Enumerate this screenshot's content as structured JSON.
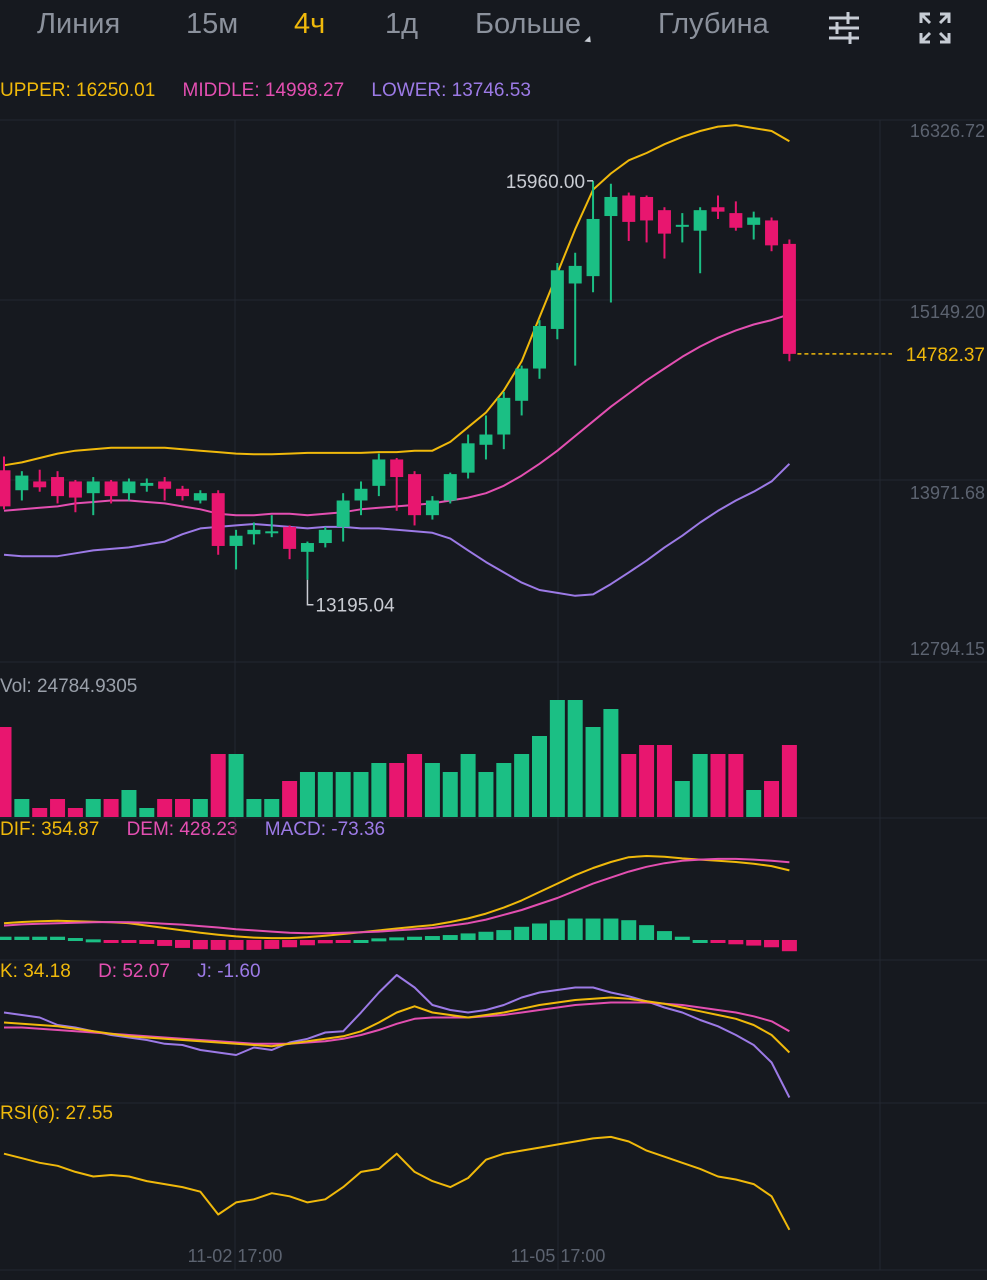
{
  "tabs": [
    {
      "label": "Линия",
      "active": false
    },
    {
      "label": "15м",
      "active": false
    },
    {
      "label": "4ч",
      "active": true
    },
    {
      "label": "1д",
      "active": false
    },
    {
      "label": "Больше",
      "active": false
    },
    {
      "label": "Глубина",
      "active": false
    }
  ],
  "icons": {
    "settings": "sliders-icon",
    "fullscreen": "expand-icon"
  },
  "colors": {
    "up": "#1bbf84",
    "down": "#e8166f",
    "upper": "#f0b90b",
    "middle": "#e34fb1",
    "lower": "#9c7ae6"
  },
  "bollinger": {
    "upper_label": "UPPER: 16250.01",
    "middle_label": "MIDDLE: 14998.27",
    "lower_label": "LOWER: 13746.53"
  },
  "volume_label": "Vol: 24784.9305",
  "macd": {
    "dif_label": "DIF: 354.87",
    "dem_label": "DEM: 428.23",
    "macd_label": "MACD: -73.36"
  },
  "kdj": {
    "k_label": "K: 34.18",
    "d_label": "D: 52.07",
    "j_label": "J: -1.60"
  },
  "rsi_label": "RSI(6): 27.55",
  "chart_data": {
    "type": "candlestick",
    "price_axis": {
      "ticks": [
        "16326.72",
        "15149.20",
        "13971.68",
        "12794.15"
      ],
      "range": [
        12794.15,
        16326.72
      ]
    },
    "current_price": "14782.37",
    "max_annotation": "15960.00",
    "min_annotation": "13195.04",
    "time_labels": [
      "11-02 17:00",
      "11-05 17:00"
    ],
    "candles": [
      [
        14006,
        13760,
        14100,
        13740
      ],
      [
        13870,
        13970,
        14000,
        13800
      ],
      [
        13930,
        13890,
        14010,
        13860
      ],
      [
        13960,
        13830,
        14000,
        13780
      ],
      [
        13930,
        13820,
        13940,
        13720
      ],
      [
        13850,
        13930,
        13960,
        13700
      ],
      [
        13930,
        13830,
        13940,
        13780
      ],
      [
        13850,
        13930,
        13950,
        13800
      ],
      [
        13900,
        13920,
        13950,
        13860
      ],
      [
        13930,
        13880,
        13960,
        13800
      ],
      [
        13880,
        13830,
        13900,
        13800
      ],
      [
        13800,
        13850,
        13870,
        13780
      ],
      [
        13850,
        13490,
        13870,
        13430
      ],
      [
        13490,
        13560,
        13600,
        13330
      ],
      [
        13570,
        13600,
        13650,
        13500
      ],
      [
        13590,
        13590,
        13700,
        13550
      ],
      [
        13620,
        13470,
        13630,
        13400
      ],
      [
        13450,
        13510,
        13520,
        13260
      ],
      [
        13510,
        13600,
        13620,
        13480
      ],
      [
        13620,
        13800,
        13850,
        13520
      ],
      [
        13800,
        13880,
        13930,
        13700
      ],
      [
        13900,
        14080,
        14120,
        13830
      ],
      [
        14080,
        13960,
        14090,
        13730
      ],
      [
        13980,
        13700,
        14000,
        13630
      ],
      [
        13700,
        13800,
        13830,
        13670
      ],
      [
        13800,
        13980,
        13990,
        13780
      ],
      [
        13990,
        14190,
        14250,
        13950
      ],
      [
        14180,
        14250,
        14380,
        14080
      ],
      [
        14250,
        14500,
        14540,
        14150
      ],
      [
        14480,
        14700,
        14720,
        14380
      ],
      [
        14700,
        14990,
        15030,
        14630
      ],
      [
        14970,
        15370,
        15420,
        14900
      ],
      [
        15280,
        15400,
        15490,
        14720
      ],
      [
        15330,
        15720,
        15980,
        15220
      ],
      [
        15740,
        15870,
        15960,
        15150
      ],
      [
        15880,
        15700,
        15900,
        15570
      ],
      [
        15870,
        15710,
        15880,
        15560
      ],
      [
        15780,
        15620,
        15800,
        15450
      ],
      [
        15680,
        15680,
        15760,
        15560
      ],
      [
        15640,
        15780,
        15800,
        15350
      ],
      [
        15800,
        15770,
        15880,
        15720
      ],
      [
        15760,
        15660,
        15840,
        15640
      ],
      [
        15680,
        15730,
        15770,
        15580
      ],
      [
        15710,
        15540,
        15730,
        15500
      ],
      [
        15550,
        14800,
        15580,
        14750
      ]
    ],
    "bollinger_upper": [
      14040,
      14060,
      14090,
      14120,
      14140,
      14150,
      14160,
      14160,
      14160,
      14160,
      14150,
      14140,
      14130,
      14120,
      14115,
      14115,
      14120,
      14125,
      14125,
      14125,
      14125,
      14130,
      14130,
      14140,
      14140,
      14200,
      14300,
      14400,
      14550,
      14750,
      15050,
      15350,
      15650,
      15920,
      16030,
      16120,
      16170,
      16230,
      16280,
      16320,
      16350,
      16360,
      16340,
      16320,
      16250
    ],
    "bollinger_middle": [
      13730,
      13740,
      13750,
      13760,
      13780,
      13790,
      13800,
      13800,
      13790,
      13780,
      13760,
      13740,
      13710,
      13700,
      13700,
      13710,
      13710,
      13700,
      13710,
      13720,
      13740,
      13750,
      13760,
      13770,
      13780,
      13800,
      13820,
      13850,
      13900,
      13970,
      14050,
      14140,
      14240,
      14340,
      14440,
      14530,
      14620,
      14700,
      14780,
      14850,
      14910,
      14960,
      15000,
      15030,
      15070
    ],
    "bollinger_lower": [
      13430,
      13420,
      13420,
      13420,
      13440,
      13460,
      13470,
      13480,
      13500,
      13520,
      13570,
      13610,
      13620,
      13630,
      13640,
      13630,
      13620,
      13610,
      13620,
      13620,
      13610,
      13610,
      13600,
      13590,
      13580,
      13540,
      13460,
      13380,
      13310,
      13240,
      13190,
      13170,
      13150,
      13160,
      13230,
      13310,
      13390,
      13480,
      13560,
      13650,
      13730,
      13800,
      13860,
      13930,
      14050
    ],
    "volume": [
      10,
      2,
      1,
      2,
      1,
      2,
      2,
      3,
      1,
      2,
      2,
      2,
      7,
      7,
      2,
      2,
      4,
      5,
      5,
      5,
      5,
      6,
      6,
      7,
      6,
      5,
      7,
      5,
      6,
      7,
      9,
      13,
      13,
      10,
      12,
      7,
      8,
      8,
      4,
      7,
      7,
      7,
      3,
      4,
      8
    ],
    "dif": [
      70,
      75,
      78,
      80,
      78,
      76,
      74,
      70,
      60,
      50,
      40,
      30,
      22,
      15,
      10,
      8,
      8,
      12,
      18,
      25,
      32,
      40,
      48,
      55,
      62,
      75,
      90,
      110,
      135,
      165,
      200,
      235,
      270,
      300,
      325,
      345,
      350,
      347,
      340,
      335,
      330,
      325,
      318,
      308,
      290
    ],
    "dem": [
      60,
      65,
      68,
      70,
      72,
      74,
      75,
      74,
      72,
      68,
      64,
      58,
      52,
      45,
      40,
      35,
      30,
      28,
      28,
      30,
      32,
      35,
      40,
      45,
      50,
      60,
      70,
      85,
      105,
      125,
      150,
      175,
      205,
      235,
      260,
      285,
      305,
      320,
      330,
      335,
      338,
      338,
      335,
      330,
      324
    ],
    "macd_hist": [
      10,
      10,
      10,
      10,
      6,
      2,
      -1,
      -4,
      -12,
      -18,
      -24,
      -28,
      -30,
      -30,
      -30,
      -27,
      -22,
      -16,
      -10,
      -5,
      0,
      5,
      8,
      10,
      12,
      15,
      20,
      25,
      30,
      40,
      50,
      60,
      65,
      65,
      65,
      60,
      45,
      27,
      10,
      0,
      -8,
      -13,
      -17,
      -22,
      -34
    ],
    "kdj_k": [
      62,
      61,
      60,
      59,
      57,
      55,
      53,
      51,
      50,
      49,
      48,
      47,
      46,
      45,
      44,
      43,
      45,
      47,
      49,
      51,
      55,
      62,
      70,
      75,
      70,
      68,
      66,
      68,
      70,
      73,
      76,
      78,
      80,
      81,
      82,
      81,
      79,
      77,
      74,
      71,
      68,
      65,
      60,
      52,
      38
    ],
    "kdj_d": [
      58,
      58,
      57,
      56,
      55,
      54,
      53,
      52,
      51,
      50,
      49,
      48,
      47,
      46,
      45,
      45,
      45,
      46,
      47,
      49,
      52,
      56,
      61,
      65,
      66,
      66,
      66,
      67,
      68,
      70,
      72,
      74,
      76,
      77,
      78,
      78,
      78,
      77,
      76,
      74,
      72,
      70,
      67,
      63,
      55
    ],
    "kdj_j": [
      70,
      68,
      66,
      60,
      58,
      55,
      52,
      50,
      48,
      45,
      44,
      40,
      38,
      36,
      42,
      40,
      46,
      49,
      54,
      55,
      70,
      86,
      100,
      90,
      76,
      72,
      70,
      72,
      76,
      82,
      86,
      88,
      90,
      90,
      86,
      83,
      79,
      74,
      70,
      64,
      59,
      52,
      44,
      30,
      2
    ],
    "rsi6": [
      60,
      57,
      54,
      52,
      48,
      45,
      46,
      45,
      42,
      40,
      38,
      35,
      20,
      28,
      30,
      34,
      32,
      28,
      30,
      38,
      48,
      50,
      60,
      48,
      42,
      38,
      44,
      56,
      60,
      62,
      64,
      66,
      68,
      70,
      71,
      68,
      62,
      58,
      54,
      50,
      45,
      43,
      40,
      32,
      10
    ]
  }
}
